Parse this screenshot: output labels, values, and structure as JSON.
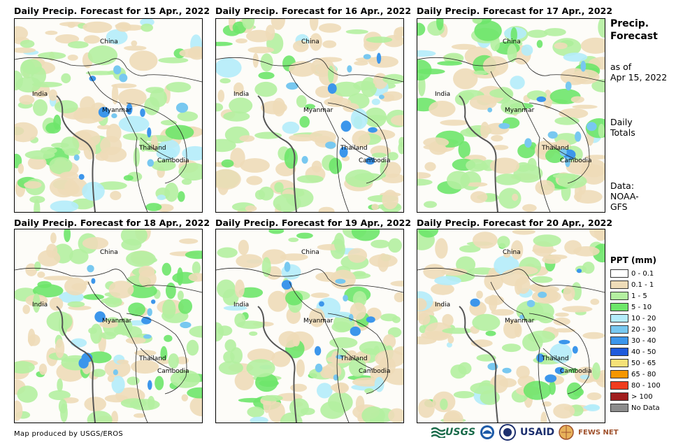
{
  "panels": [
    {
      "title": "Daily Precip. Forecast for 15 Apr., 2022"
    },
    {
      "title": "Daily Precip. Forecast for 16 Apr., 2022"
    },
    {
      "title": "Daily Precip. Forecast for 17 Apr., 2022"
    },
    {
      "title": "Daily Precip. Forecast for 18 Apr., 2022"
    },
    {
      "title": "Daily Precip. Forecast for 19 Apr., 2022"
    },
    {
      "title": "Daily Precip. Forecast for 20 Apr., 2022"
    }
  ],
  "places": {
    "china": "China",
    "india": "India",
    "myanmar": "Myanmar",
    "thailand": "Thailand",
    "cambodia": "Cambodia"
  },
  "side": {
    "title_line1": "Precip.",
    "title_line2": "Forecast",
    "asof_line1": "as of",
    "asof_line2": "Apr 15, 2022",
    "totals_line1": "Daily",
    "totals_line2": "Totals",
    "data_line1": "Data:",
    "data_line2": "NOAA-",
    "data_line3": "GFS"
  },
  "legend": {
    "title": "PPT (mm)",
    "items": [
      {
        "label": "0 - 0.1",
        "color": "#ffffff"
      },
      {
        "label": "0.1 - 1",
        "color": "#eedcb8"
      },
      {
        "label": "1 - 5",
        "color": "#b4f0a0"
      },
      {
        "label": "5 - 10",
        "color": "#6ee66a"
      },
      {
        "label": "10 - 20",
        "color": "#b4ecfa"
      },
      {
        "label": "20 - 30",
        "color": "#78c8f0"
      },
      {
        "label": "30 - 40",
        "color": "#3c96eb"
      },
      {
        "label": "40 - 50",
        "color": "#1e5adc"
      },
      {
        "label": "50 - 65",
        "color": "#f5e178"
      },
      {
        "label": "65 - 80",
        "color": "#f59600"
      },
      {
        "label": "80 - 100",
        "color": "#f03c1e"
      },
      {
        "label": "> 100",
        "color": "#a01e1e"
      },
      {
        "label": "No Data",
        "color": "#8c8c8c"
      }
    ]
  },
  "credit": "Map produced by USGS/EROS",
  "logos": {
    "usgs": "USGS",
    "usaid": "USAID",
    "fewsnet": "FEWS NET"
  }
}
